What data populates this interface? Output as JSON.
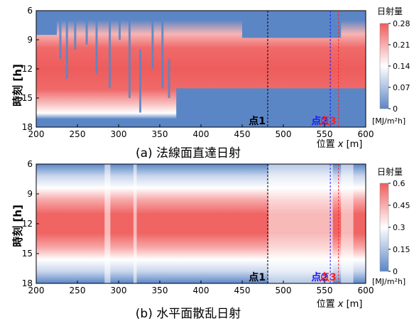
{
  "colors": {
    "low": "#5b86c6",
    "mid": "#ffffff",
    "high": "#f05c5c",
    "line_point1": "#000000",
    "line_point2": "#1a1aff",
    "line_point3": "#ff2020"
  },
  "chart_data": [
    {
      "type": "heatmap",
      "caption": "(a)  法線面直達日射",
      "ylabel": "時刻 [h]",
      "xlabel_prefix": "位置 ",
      "xlabel_var": "x",
      "xlabel_unit": " [m]",
      "x_ticks": [
        200,
        250,
        300,
        350,
        400,
        450,
        500,
        550,
        600
      ],
      "y_ticks": [
        6,
        9,
        12,
        15,
        18
      ],
      "xlim": [
        200,
        600
      ],
      "ylim": [
        6,
        18
      ],
      "colorbar": {
        "title": "日射量",
        "unit": "[MJ/m²h]",
        "ticks": [
          "0.28",
          "0.21",
          "0.14",
          "0.07",
          "0"
        ],
        "range": [
          0,
          0.28
        ]
      },
      "markers": [
        {
          "label": "点1",
          "x": 481,
          "color": "#000000"
        },
        {
          "label": "点2",
          "x": 557,
          "color": "#1a1aff"
        },
        {
          "label": "点3",
          "x": 567,
          "color": "#ff2020"
        }
      ],
      "daylight_hours": [
        8.5,
        15.5
      ],
      "shadow_regions": [
        {
          "x": [
            200,
            225
          ],
          "y": [
            6,
            8.5
          ]
        },
        {
          "x": [
            370,
            600
          ],
          "y": [
            14,
            18
          ]
        },
        {
          "x": [
            450,
            570
          ],
          "y": [
            6,
            8.8
          ]
        }
      ]
    },
    {
      "type": "heatmap",
      "caption": "(b)  水平面散乱日射",
      "ylabel": "時刻 [h]",
      "xlabel_prefix": "位置 ",
      "xlabel_var": "x",
      "xlabel_unit": " [m]",
      "x_ticks": [
        200,
        250,
        300,
        350,
        400,
        450,
        500,
        550,
        600
      ],
      "y_ticks": [
        6,
        9,
        12,
        15,
        18
      ],
      "xlim": [
        200,
        600
      ],
      "ylim": [
        6,
        18
      ],
      "colorbar": {
        "title": "日射量",
        "unit": "[MJ/m²h]",
        "ticks": [
          "0.6",
          "0.45",
          "0.3",
          "0.15",
          "0"
        ],
        "range": [
          0,
          0.6
        ]
      },
      "markers": [
        {
          "label": "点1",
          "x": 481,
          "color": "#000000"
        },
        {
          "label": "点2",
          "x": 557,
          "color": "#1a1aff"
        },
        {
          "label": "点3",
          "x": 567,
          "color": "#ff2020"
        }
      ],
      "low_transmission_bands": [
        {
          "x": [
            283,
            290
          ]
        },
        {
          "x": [
            318,
            322
          ]
        },
        {
          "x": [
            482,
            560
          ]
        },
        {
          "x": [
            570,
            585
          ]
        }
      ]
    }
  ]
}
